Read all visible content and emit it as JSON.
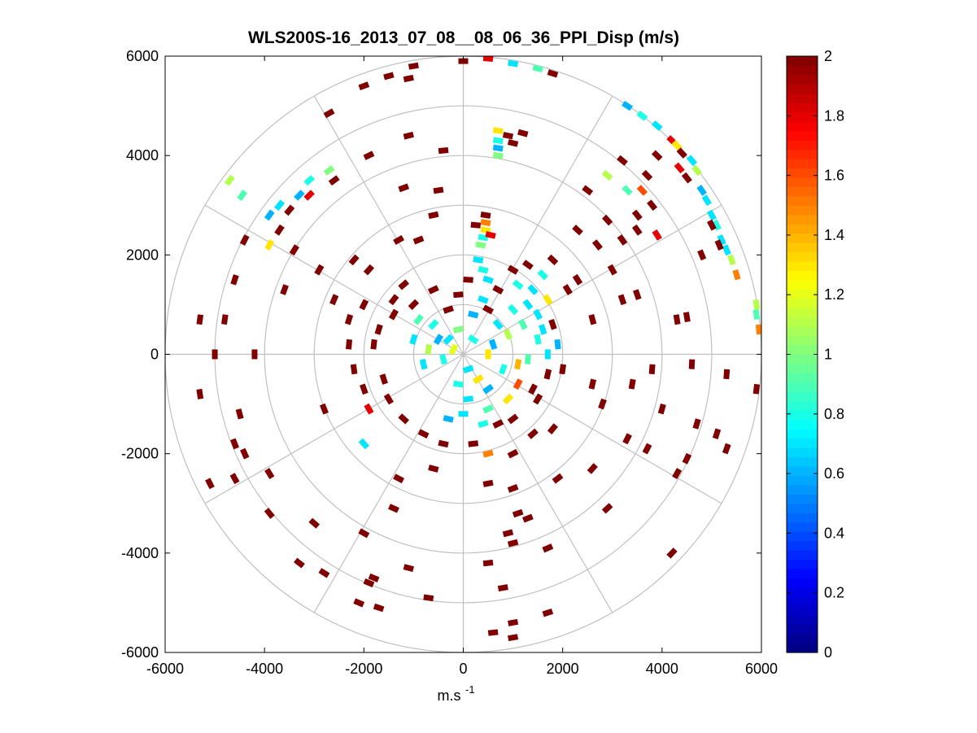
{
  "chart_data": {
    "type": "polar-ppi",
    "title": "WLS200S-16_2013_07_08__08_06_36_PPI_Disp (m/s)",
    "xlabel": "m.s",
    "xlabel_sup": "-1",
    "ylabel": "",
    "xlim": [
      -6000,
      6000
    ],
    "ylim": [
      -6000,
      6000
    ],
    "xticks": [
      -6000,
      -4000,
      -2000,
      0,
      2000,
      4000,
      6000
    ],
    "yticks": [
      -6000,
      -4000,
      -2000,
      0,
      2000,
      4000,
      6000
    ],
    "xtick_labels": [
      "-6000",
      "-4000",
      "-2000",
      "0",
      "2000",
      "4000",
      "6000"
    ],
    "ytick_labels": [
      "-6000",
      "-4000",
      "-2000",
      "0",
      "2000",
      "4000",
      "6000"
    ],
    "range_rings": [
      1000,
      2000,
      3000,
      4000,
      5000,
      6000
    ],
    "spoke_angles_deg": [
      0,
      30,
      60,
      90,
      120,
      150,
      180,
      210,
      240,
      270,
      300,
      330
    ],
    "colorbar": {
      "min": 0,
      "max": 2,
      "ticks": [
        0,
        0.2,
        0.4,
        0.6,
        0.8,
        1,
        1.2,
        1.4,
        1.6,
        1.8,
        2
      ],
      "tick_labels": [
        "0",
        "0.2",
        "0.4",
        "0.6",
        "0.8",
        "1",
        "1.2",
        "1.4",
        "1.6",
        "1.8",
        "2"
      ],
      "colormap": "jet",
      "levels": 64
    },
    "grid": true,
    "cells": [
      {
        "x": 0,
        "y": 5900,
        "v": 2
      },
      {
        "x": 1000,
        "y": 5850,
        "v": 0.7
      },
      {
        "x": 1500,
        "y": 5750,
        "v": 0.9
      },
      {
        "x": 500,
        "y": 5950,
        "v": 1.8
      },
      {
        "x": 1800,
        "y": 5650,
        "v": 2
      },
      {
        "x": -1000,
        "y": 5800,
        "v": 2
      },
      {
        "x": -1500,
        "y": 5600,
        "v": 2
      },
      {
        "x": -1100,
        "y": 5550,
        "v": 2
      },
      {
        "x": -2000,
        "y": 5400,
        "v": 2
      },
      {
        "x": -2700,
        "y": 4850,
        "v": 2
      },
      {
        "x": -1100,
        "y": 4400,
        "v": 2
      },
      {
        "x": -400,
        "y": 4100,
        "v": 2
      },
      {
        "x": -1900,
        "y": 4000,
        "v": 2
      },
      {
        "x": -2600,
        "y": 3500,
        "v": 2
      },
      {
        "x": -1200,
        "y": 3350,
        "v": 2
      },
      {
        "x": -500,
        "y": 3300,
        "v": 2
      },
      {
        "x": 900,
        "y": 4400,
        "v": 2
      },
      {
        "x": 700,
        "y": 4500,
        "v": 1.3
      },
      {
        "x": 700,
        "y": 4300,
        "v": 0.8
      },
      {
        "x": 700,
        "y": 4150,
        "v": 0.6
      },
      {
        "x": 700,
        "y": 4000,
        "v": 1
      },
      {
        "x": 1200,
        "y": 4450,
        "v": 2
      },
      {
        "x": 1000,
        "y": 4250,
        "v": 2
      },
      {
        "x": 3300,
        "y": 5000,
        "v": 0.6
      },
      {
        "x": 3600,
        "y": 4800,
        "v": 0.8
      },
      {
        "x": 3900,
        "y": 4600,
        "v": 0.7
      },
      {
        "x": 4200,
        "y": 4300,
        "v": 1.8
      },
      {
        "x": 4300,
        "y": 4200,
        "v": 1.3
      },
      {
        "x": 4400,
        "y": 4050,
        "v": 2
      },
      {
        "x": 4600,
        "y": 3900,
        "v": 0.7
      },
      {
        "x": 4700,
        "y": 3700,
        "v": 1.1
      },
      {
        "x": 4500,
        "y": 3550,
        "v": 2
      },
      {
        "x": 4350,
        "y": 3750,
        "v": 1.8
      },
      {
        "x": 4800,
        "y": 3300,
        "v": 0.6
      },
      {
        "x": 4900,
        "y": 3100,
        "v": 0.7
      },
      {
        "x": 5000,
        "y": 2800,
        "v": 0.7
      },
      {
        "x": 5100,
        "y": 2600,
        "v": 0.8
      },
      {
        "x": 5200,
        "y": 2300,
        "v": 0.7
      },
      {
        "x": 5300,
        "y": 2100,
        "v": 0.7
      },
      {
        "x": 5400,
        "y": 1900,
        "v": 1.1
      },
      {
        "x": 5500,
        "y": 1600,
        "v": 1.5
      },
      {
        "x": 5000,
        "y": 2600,
        "v": 2
      },
      {
        "x": 5150,
        "y": 2200,
        "v": 2
      },
      {
        "x": 5900,
        "y": 1000,
        "v": 1.1
      },
      {
        "x": 5900,
        "y": 800,
        "v": 0.9
      },
      {
        "x": 5950,
        "y": 500,
        "v": 1.5
      },
      {
        "x": 3600,
        "y": 3300,
        "v": 1.6
      },
      {
        "x": 3300,
        "y": 3300,
        "v": 0.9
      },
      {
        "x": 3500,
        "y": 2800,
        "v": 2
      },
      {
        "x": 3800,
        "y": 3000,
        "v": 2
      },
      {
        "x": 2900,
        "y": 2700,
        "v": 2
      },
      {
        "x": 3200,
        "y": 2300,
        "v": 2
      },
      {
        "x": 3900,
        "y": 2400,
        "v": 1.8
      },
      {
        "x": 3200,
        "y": 3900,
        "v": 2
      },
      {
        "x": 3700,
        "y": 3600,
        "v": 2
      },
      {
        "x": 3900,
        "y": 4000,
        "v": 2
      },
      {
        "x": 4800,
        "y": 2000,
        "v": 2
      },
      {
        "x": 3000,
        "y": 1700,
        "v": 2
      },
      {
        "x": 4300,
        "y": 700,
        "v": 2
      },
      {
        "x": 4500,
        "y": 750,
        "v": 2
      },
      {
        "x": 4600,
        "y": -200,
        "v": 2
      },
      {
        "x": 5300,
        "y": -400,
        "v": 2
      },
      {
        "x": 5900,
        "y": -700,
        "v": 2
      },
      {
        "x": 4000,
        "y": -1100,
        "v": 2
      },
      {
        "x": 4700,
        "y": -1400,
        "v": 2
      },
      {
        "x": 5100,
        "y": -1600,
        "v": 2
      },
      {
        "x": 5300,
        "y": -1900,
        "v": 2
      },
      {
        "x": 4500,
        "y": -2100,
        "v": 2
      },
      {
        "x": 3700,
        "y": -1900,
        "v": 2
      },
      {
        "x": 3300,
        "y": -1700,
        "v": 2
      },
      {
        "x": 4300,
        "y": -2400,
        "v": 2
      },
      {
        "x": 4200,
        "y": -4000,
        "v": 2
      },
      {
        "x": 2800,
        "y": -1000,
        "v": 2
      },
      {
        "x": 2600,
        "y": 700,
        "v": 2
      },
      {
        "x": 450,
        "y": 2800,
        "v": 2
      },
      {
        "x": 450,
        "y": 2650,
        "v": 1.5
      },
      {
        "x": 450,
        "y": 2500,
        "v": 1.3
      },
      {
        "x": 400,
        "y": 2350,
        "v": 0.8
      },
      {
        "x": 350,
        "y": 2200,
        "v": 1
      },
      {
        "x": 550,
        "y": 2400,
        "v": 1.8
      },
      {
        "x": 300,
        "y": 1900,
        "v": 0.7
      },
      {
        "x": 250,
        "y": 2600,
        "v": 2
      },
      {
        "x": 400,
        "y": 1700,
        "v": 0.8
      },
      {
        "x": 500,
        "y": 1500,
        "v": 0.7
      },
      {
        "x": 1300,
        "y": 1800,
        "v": 2
      },
      {
        "x": 1600,
        "y": 1600,
        "v": 0.8
      },
      {
        "x": 1400,
        "y": 1300,
        "v": 0.7
      },
      {
        "x": 1100,
        "y": 1400,
        "v": 0.8
      },
      {
        "x": 1700,
        "y": 1100,
        "v": 1.3
      },
      {
        "x": 1300,
        "y": 1000,
        "v": 0.7
      },
      {
        "x": 1000,
        "y": 900,
        "v": 0.8
      },
      {
        "x": 1500,
        "y": 800,
        "v": 0.7
      },
      {
        "x": 1200,
        "y": 600,
        "v": 0.9
      },
      {
        "x": 1600,
        "y": 500,
        "v": 0.7
      },
      {
        "x": 900,
        "y": 400,
        "v": 1.1
      },
      {
        "x": 1500,
        "y": 300,
        "v": 0.8
      },
      {
        "x": 1700,
        "y": 0,
        "v": 0.7
      },
      {
        "x": 1300,
        "y": -100,
        "v": 0.9
      },
      {
        "x": 700,
        "y": 600,
        "v": 0.7
      },
      {
        "x": 600,
        "y": 200,
        "v": 0.6
      },
      {
        "x": 1100,
        "y": -200,
        "v": 1.4
      },
      {
        "x": 1800,
        "y": 600,
        "v": 2
      },
      {
        "x": 1900,
        "y": 200,
        "v": 0.6
      },
      {
        "x": 2100,
        "y": 1300,
        "v": 2
      },
      {
        "x": 1800,
        "y": 1900,
        "v": 2
      },
      {
        "x": 2300,
        "y": 1500,
        "v": 2
      },
      {
        "x": -300,
        "y": 300,
        "v": 0.7
      },
      {
        "x": -600,
        "y": 600,
        "v": 0.8
      },
      {
        "x": -900,
        "y": 700,
        "v": 0.9
      },
      {
        "x": -1000,
        "y": 300,
        "v": 0.7
      },
      {
        "x": -700,
        "y": 100,
        "v": 1.1
      },
      {
        "x": -400,
        "y": -100,
        "v": 0.8
      },
      {
        "x": -800,
        "y": -200,
        "v": 0.7
      },
      {
        "x": -200,
        "y": 100,
        "v": 1.2
      },
      {
        "x": 200,
        "y": 300,
        "v": 0.8
      },
      {
        "x": 100,
        "y": -300,
        "v": 0.7
      },
      {
        "x": 300,
        "y": -500,
        "v": 1.3
      },
      {
        "x": -100,
        "y": -600,
        "v": 0.8
      },
      {
        "x": 100,
        "y": -900,
        "v": 0.7
      },
      {
        "x": 500,
        "y": -700,
        "v": 0.6
      },
      {
        "x": 0,
        "y": -1200,
        "v": 0.7
      },
      {
        "x": 400,
        "y": -1400,
        "v": 0.8
      },
      {
        "x": -300,
        "y": -1300,
        "v": 0.6
      },
      {
        "x": 500,
        "y": -1100,
        "v": 0.9
      },
      {
        "x": 400,
        "y": 1100,
        "v": 0.7
      },
      {
        "x": 200,
        "y": 800,
        "v": 0.6
      },
      {
        "x": -100,
        "y": 500,
        "v": 1
      },
      {
        "x": 500,
        "y": 0,
        "v": 1.3
      },
      {
        "x": -500,
        "y": 300,
        "v": 0.6
      },
      {
        "x": 800,
        "y": -300,
        "v": 0.8
      },
      {
        "x": -1200,
        "y": 1400,
        "v": 2
      },
      {
        "x": -1900,
        "y": 1700,
        "v": 2
      },
      {
        "x": -2200,
        "y": 1900,
        "v": 2
      },
      {
        "x": -2000,
        "y": 1000,
        "v": 2
      },
      {
        "x": -1300,
        "y": 2300,
        "v": 2
      },
      {
        "x": -600,
        "y": 2800,
        "v": 2
      },
      {
        "x": -900,
        "y": 2300,
        "v": 2
      },
      {
        "x": -1400,
        "y": 1100,
        "v": 2
      },
      {
        "x": -2900,
        "y": 1700,
        "v": 2
      },
      {
        "x": -3400,
        "y": 2100,
        "v": 2
      },
      {
        "x": -3600,
        "y": 1300,
        "v": 2
      },
      {
        "x": -2600,
        "y": 1100,
        "v": 2
      },
      {
        "x": -4400,
        "y": 2300,
        "v": 2
      },
      {
        "x": -4600,
        "y": 1500,
        "v": 2
      },
      {
        "x": -5300,
        "y": 700,
        "v": 2
      },
      {
        "x": -4800,
        "y": 700,
        "v": 2
      },
      {
        "x": -5000,
        "y": 0,
        "v": 2
      },
      {
        "x": -4200,
        "y": 0,
        "v": 2
      },
      {
        "x": -2300,
        "y": 700,
        "v": 2
      },
      {
        "x": -4700,
        "y": 3500,
        "v": 1.1
      },
      {
        "x": -4450,
        "y": 3200,
        "v": 0.9
      },
      {
        "x": -3900,
        "y": 2800,
        "v": 0.6
      },
      {
        "x": -3700,
        "y": 3000,
        "v": 0.7
      },
      {
        "x": -3300,
        "y": 3200,
        "v": 0.6
      },
      {
        "x": -3100,
        "y": 3500,
        "v": 0.8
      },
      {
        "x": -2700,
        "y": 3700,
        "v": 1
      },
      {
        "x": -3500,
        "y": 2900,
        "v": 2
      },
      {
        "x": -3100,
        "y": 3200,
        "v": 1.8
      },
      {
        "x": -3900,
        "y": 2200,
        "v": 1.3
      },
      {
        "x": -3700,
        "y": 2500,
        "v": 2
      },
      {
        "x": -5300,
        "y": -800,
        "v": 2
      },
      {
        "x": -4500,
        "y": -1200,
        "v": 2
      },
      {
        "x": -4600,
        "y": -1800,
        "v": 2
      },
      {
        "x": -4400,
        "y": -2000,
        "v": 2
      },
      {
        "x": -5100,
        "y": -2600,
        "v": 2
      },
      {
        "x": -4600,
        "y": -2500,
        "v": 2
      },
      {
        "x": -3900,
        "y": -2400,
        "v": 2
      },
      {
        "x": -2800,
        "y": -1100,
        "v": 2
      },
      {
        "x": -3900,
        "y": -3200,
        "v": 2
      },
      {
        "x": -3000,
        "y": -3400,
        "v": 2
      },
      {
        "x": -2000,
        "y": -3600,
        "v": 2
      },
      {
        "x": -1400,
        "y": -3100,
        "v": 2
      },
      {
        "x": -3300,
        "y": -4200,
        "v": 2
      },
      {
        "x": -2800,
        "y": -4400,
        "v": 2
      },
      {
        "x": -1800,
        "y": -4500,
        "v": 2
      },
      {
        "x": -1100,
        "y": -4300,
        "v": 2
      },
      {
        "x": -2100,
        "y": -5000,
        "v": 2
      },
      {
        "x": -1700,
        "y": -5100,
        "v": 2
      },
      {
        "x": -700,
        "y": -4900,
        "v": 2
      },
      {
        "x": -1900,
        "y": -4600,
        "v": 2
      },
      {
        "x": -1300,
        "y": -2500,
        "v": 2
      },
      {
        "x": -600,
        "y": -2300,
        "v": 2
      },
      {
        "x": -2000,
        "y": -1800,
        "v": 0.7
      },
      {
        "x": -1900,
        "y": -1100,
        "v": 1.8
      },
      {
        "x": 500,
        "y": -2600,
        "v": 2
      },
      {
        "x": 1000,
        "y": -2700,
        "v": 2
      },
      {
        "x": 1100,
        "y": -3200,
        "v": 2
      },
      {
        "x": 900,
        "y": -3600,
        "v": 2
      },
      {
        "x": 1300,
        "y": -3300,
        "v": 2
      },
      {
        "x": 1000,
        "y": -3800,
        "v": 2
      },
      {
        "x": 500,
        "y": -4200,
        "v": 2
      },
      {
        "x": 800,
        "y": -4700,
        "v": 2
      },
      {
        "x": 1700,
        "y": -5200,
        "v": 2
      },
      {
        "x": 1000,
        "y": -5400,
        "v": 2
      },
      {
        "x": 600,
        "y": -5600,
        "v": 2
      },
      {
        "x": 1000,
        "y": -5700,
        "v": 2
      },
      {
        "x": 1700,
        "y": -3900,
        "v": 2
      },
      {
        "x": 1900,
        "y": -2500,
        "v": 2
      },
      {
        "x": 1800,
        "y": -1500,
        "v": 2
      },
      {
        "x": 2600,
        "y": -2300,
        "v": 2
      },
      {
        "x": 2900,
        "y": -3100,
        "v": 2
      },
      {
        "x": 1400,
        "y": -1600,
        "v": 2
      },
      {
        "x": 1000,
        "y": -2000,
        "v": 2
      },
      {
        "x": 500,
        "y": -2000,
        "v": 1.5
      },
      {
        "x": 2600,
        "y": -600,
        "v": 2
      },
      {
        "x": 3400,
        "y": -600,
        "v": 2
      },
      {
        "x": 3800,
        "y": -300,
        "v": 2
      },
      {
        "x": 3200,
        "y": 1100,
        "v": 2
      },
      {
        "x": 3500,
        "y": 1200,
        "v": 2
      },
      {
        "x": 2300,
        "y": 2500,
        "v": 2
      },
      {
        "x": 2700,
        "y": 2200,
        "v": 2
      },
      {
        "x": 2500,
        "y": 3300,
        "v": 2
      },
      {
        "x": 2900,
        "y": 3600,
        "v": 1.1
      },
      {
        "x": 3500,
        "y": 2500,
        "v": 2
      },
      {
        "x": -2200,
        "y": -300,
        "v": 2
      },
      {
        "x": -2000,
        "y": -700,
        "v": 2
      },
      {
        "x": -1500,
        "y": -900,
        "v": 2
      },
      {
        "x": -2300,
        "y": 200,
        "v": 2
      },
      {
        "x": -1700,
        "y": 500,
        "v": 2
      },
      {
        "x": -1400,
        "y": 800,
        "v": 2
      },
      {
        "x": -1600,
        "y": -500,
        "v": 2
      },
      {
        "x": -1800,
        "y": 200,
        "v": 2
      },
      {
        "x": -1200,
        "y": -1300,
        "v": 2
      },
      {
        "x": -800,
        "y": -1600,
        "v": 2
      },
      {
        "x": -400,
        "y": -1800,
        "v": 2
      },
      {
        "x": 200,
        "y": -1800,
        "v": 2
      },
      {
        "x": 700,
        "y": -1400,
        "v": 2
      },
      {
        "x": 1000,
        "y": -1300,
        "v": 2
      },
      {
        "x": 1500,
        "y": -900,
        "v": 2
      },
      {
        "x": 1700,
        "y": -400,
        "v": 2
      },
      {
        "x": 2000,
        "y": -300,
        "v": 2
      },
      {
        "x": 1400,
        "y": -700,
        "v": 2
      },
      {
        "x": 900,
        "y": -900,
        "v": 1.3
      },
      {
        "x": 1100,
        "y": -600,
        "v": 1.6
      },
      {
        "x": 500,
        "y": 900,
        "v": 2
      },
      {
        "x": -100,
        "y": 1200,
        "v": 2
      },
      {
        "x": -600,
        "y": 1300,
        "v": 2
      },
      {
        "x": 100,
        "y": 1500,
        "v": 2
      },
      {
        "x": 700,
        "y": 1300,
        "v": 2
      },
      {
        "x": 1000,
        "y": 1700,
        "v": 2
      },
      {
        "x": -1000,
        "y": 1000,
        "v": 2
      },
      {
        "x": -300,
        "y": 900,
        "v": 2
      }
    ]
  }
}
